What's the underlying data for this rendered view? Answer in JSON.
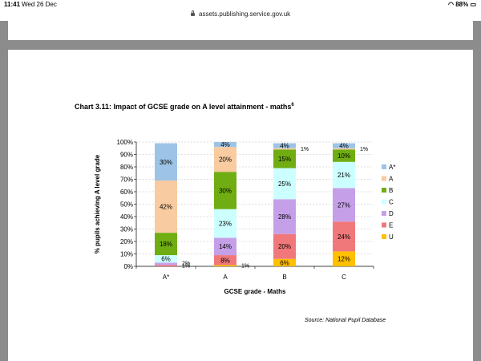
{
  "status_bar": {
    "time": "11:41",
    "date": "Wed 26 Dec",
    "battery": "88%"
  },
  "browser": {
    "url": "assets.publishing.service.gov.uk"
  },
  "colors": {
    "A*": "#9DC3E6",
    "A": "#F8CBA0",
    "B": "#70AD12",
    "C": "#CCFFFF",
    "D": "#C5A0E8",
    "E": "#F0787A",
    "U": "#FFC000"
  },
  "chart_data": {
    "type": "bar",
    "stacked": true,
    "title": "Chart 3.11: Impact of GCSE grade on A level attainment - maths",
    "title_footnote": "6",
    "xlabel": "GCSE grade  - Maths",
    "ylabel": "% pupils achieving A level grade",
    "ylim": [
      0,
      100
    ],
    "yticks": [
      "0%",
      "10%",
      "20%",
      "30%",
      "40%",
      "50%",
      "60%",
      "70%",
      "80%",
      "90%",
      "100%"
    ],
    "categories": [
      "A*",
      "A",
      "B",
      "C"
    ],
    "legend_position": "right",
    "series": [
      {
        "name": "A*",
        "values": [
          30,
          4,
          4,
          4
        ],
        "labels": [
          "30%",
          "4%",
          "4%",
          "4%"
        ]
      },
      {
        "name": "A",
        "values": [
          42,
          20,
          1,
          1
        ],
        "labels": [
          "42%",
          "20%",
          "1%",
          "1%"
        ]
      },
      {
        "name": "B",
        "values": [
          18,
          30,
          15,
          10
        ],
        "labels": [
          "18%",
          "30%",
          "15%",
          "10%"
        ]
      },
      {
        "name": "C",
        "values": [
          6,
          23,
          25,
          21
        ],
        "labels": [
          "6%",
          "23%",
          "25%",
          "21%"
        ]
      },
      {
        "name": "D",
        "values": [
          2,
          14,
          28,
          27
        ],
        "labels": [
          "2%",
          "14%",
          "28%",
          "27%"
        ]
      },
      {
        "name": "E",
        "values": [
          1,
          8,
          20,
          24
        ],
        "labels": [
          "1%",
          "8%",
          "20%",
          "24%"
        ]
      },
      {
        "name": "U",
        "values": [
          0,
          1,
          6,
          12
        ],
        "labels": [
          "",
          "1%",
          "6%",
          "12%"
        ]
      }
    ],
    "source": "Source: National Pupil Database"
  }
}
